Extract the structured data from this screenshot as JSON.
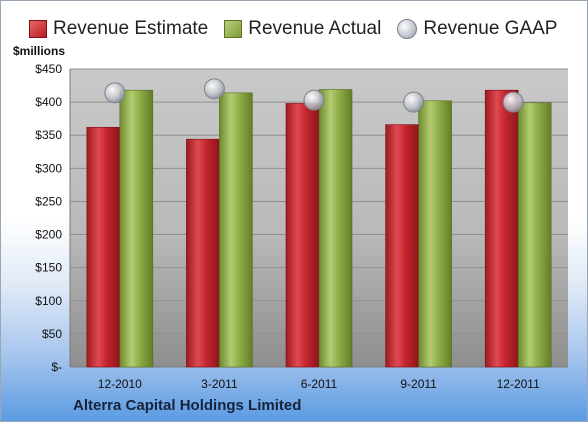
{
  "legend": {
    "estimate": "Revenue Estimate",
    "actual": "Revenue Actual",
    "gaap": "Revenue GAAP"
  },
  "unit_label": "$millions",
  "company": "Alterra Capital Holdings Limited",
  "colors": {
    "estimate": "#c4262e",
    "actual": "#8fae47",
    "gaap": "#c9ccd4",
    "plot_bg": "#c8c8c8",
    "grid": "#8f8f8f"
  },
  "chart_data": {
    "type": "bar",
    "categories": [
      "12-2010",
      "3-2011",
      "6-2011",
      "9-2011",
      "12-2011"
    ],
    "series": [
      {
        "name": "Revenue Estimate",
        "values": [
          362,
          344,
          398,
          366,
          418
        ]
      },
      {
        "name": "Revenue Actual",
        "values": [
          418,
          414,
          419,
          402,
          399
        ]
      },
      {
        "name": "Revenue GAAP",
        "values": [
          414,
          420,
          403,
          400,
          400
        ]
      }
    ],
    "ylabel": "$millions",
    "ylim": [
      0,
      450
    ],
    "yticks": [
      0,
      50,
      100,
      150,
      200,
      250,
      300,
      350,
      400,
      450
    ],
    "ytick_labels": [
      "$-",
      "$50",
      "$100",
      "$150",
      "$200",
      "$250",
      "$300",
      "$350",
      "$400",
      "$450"
    ],
    "grid": true,
    "legend": "top"
  }
}
